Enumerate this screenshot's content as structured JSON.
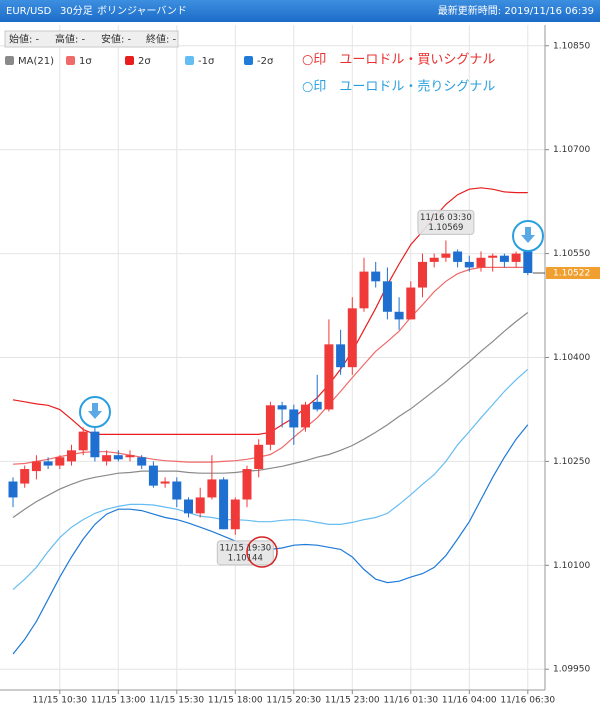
{
  "header": {
    "symbol": "EUR/USD",
    "timeframe": "30分足",
    "indicator": "ボリンジャーバンド",
    "updated": "最新更新時間: 2019/11/16 06:39"
  },
  "ohlc_box": [
    "始値: -",
    "高値: -",
    "安値: -",
    "終値: -"
  ],
  "chart_data": {
    "type": "candlestick",
    "categories": [
      null,
      null,
      null,
      null,
      "11/15 10:30",
      null,
      null,
      null,
      null,
      "11/15 13:00",
      null,
      null,
      null,
      null,
      "11/15 15:30",
      null,
      null,
      null,
      null,
      "11/15 18:00",
      null,
      null,
      null,
      null,
      "11/15 20:30",
      null,
      null,
      null,
      null,
      "11/15 23:00",
      null,
      null,
      null,
      null,
      "11/16 01:30",
      null,
      null,
      null,
      null,
      "11/16 04:00",
      null,
      null,
      null,
      null,
      "11/16 06:30"
    ],
    "open": [
      1.10221,
      1.10218,
      1.10236,
      1.1025,
      1.10244,
      1.1025,
      1.10266,
      1.10293,
      1.1025,
      1.10259,
      1.10256,
      1.10256,
      1.10244,
      1.10218,
      1.10221,
      1.10195,
      1.10175,
      1.10198,
      1.10224,
      1.10152,
      1.10195,
      1.10239,
      1.10274,
      1.10331,
      1.10325,
      1.10299,
      1.10336,
      1.10325,
      1.10419,
      1.10386,
      1.10471,
      1.10524,
      1.1051,
      1.10466,
      1.10455,
      1.10501,
      1.10538,
      1.10544,
      1.10553,
      1.10538,
      1.1053,
      1.10544,
      1.10547,
      1.10538,
      1.10553
    ],
    "high": [
      1.10227,
      1.10244,
      1.10259,
      1.10256,
      1.10259,
      1.10274,
      1.10299,
      1.10299,
      1.10266,
      1.10266,
      1.10266,
      1.10259,
      1.1025,
      1.10227,
      1.10227,
      1.10198,
      1.10212,
      1.10259,
      1.10227,
      1.10198,
      1.10244,
      1.10282,
      1.10336,
      1.10336,
      1.10332,
      1.10336,
      1.10375,
      1.10455,
      1.1044,
      1.10487,
      1.10544,
      1.10538,
      1.1053,
      1.10487,
      1.1051,
      1.1055,
      1.1055,
      1.10569,
      1.10556,
      1.10547,
      1.10553,
      1.1055,
      1.1055,
      1.10553,
      1.10556
    ],
    "low": [
      1.10184,
      1.10212,
      1.10224,
      1.10239,
      1.10239,
      1.10244,
      1.10259,
      1.1025,
      1.10244,
      1.1025,
      1.1025,
      1.10239,
      1.10212,
      1.10212,
      1.10184,
      1.10169,
      1.10169,
      1.10195,
      1.10152,
      1.10144,
      1.10184,
      1.10227,
      1.10266,
      1.10299,
      1.10274,
      1.10293,
      1.10322,
      1.10322,
      1.10375,
      1.10375,
      1.10466,
      1.10501,
      1.10455,
      1.1044,
      1.10455,
      1.10487,
      1.1053,
      1.10538,
      1.1053,
      1.10524,
      1.10524,
      1.10524,
      1.1053,
      1.1053,
      1.10519
    ],
    "close": [
      1.10198,
      1.10239,
      1.1025,
      1.10244,
      1.10256,
      1.10266,
      1.10293,
      1.10256,
      1.10259,
      1.10253,
      1.10259,
      1.10244,
      1.10215,
      1.10221,
      1.10195,
      1.10175,
      1.10198,
      1.10224,
      1.10152,
      1.10195,
      1.10239,
      1.10274,
      1.10331,
      1.10325,
      1.10299,
      1.10332,
      1.10325,
      1.10419,
      1.10386,
      1.10471,
      1.10524,
      1.1051,
      1.10466,
      1.10455,
      1.10501,
      1.10538,
      1.10544,
      1.1055,
      1.10538,
      1.1053,
      1.10544,
      1.10547,
      1.10538,
      1.1055,
      1.10522
    ],
    "up_color": "#f03a3a",
    "down_color": "#1f6fd0",
    "series": [
      {
        "name": "MA(21)",
        "color": "#8a8a8a",
        "values": [
          1.10169,
          1.10181,
          1.10192,
          1.10201,
          1.1021,
          1.10217,
          1.10223,
          1.10227,
          1.1023,
          1.10233,
          1.10234,
          1.10236,
          1.10236,
          1.10236,
          1.10236,
          1.10234,
          1.10233,
          1.10233,
          1.10233,
          1.10234,
          1.10236,
          1.10237,
          1.1024,
          1.10243,
          1.10247,
          1.10251,
          1.10256,
          1.1026,
          1.10266,
          1.10273,
          1.10282,
          1.10292,
          1.10303,
          1.10315,
          1.10326,
          1.10339,
          1.10352,
          1.10365,
          1.1038,
          1.10394,
          1.10409,
          1.10423,
          1.10438,
          1.10452,
          1.10465
        ]
      },
      {
        "name": "1σ",
        "color": "#f06a6a",
        "values": [
          1.10246,
          1.10247,
          1.1025,
          1.10253,
          1.10257,
          1.1026,
          1.10263,
          1.10264,
          1.10264,
          1.10262,
          1.10259,
          1.10256,
          1.10253,
          1.10251,
          1.1025,
          1.10249,
          1.10249,
          1.10249,
          1.1025,
          1.10251,
          1.10253,
          1.10256,
          1.1026,
          1.1027,
          1.10285,
          1.10299,
          1.10313,
          1.10332,
          1.10351,
          1.10371,
          1.1039,
          1.10409,
          1.10423,
          1.10438,
          1.10458,
          1.10476,
          1.10495,
          1.1051,
          1.10521,
          1.10527,
          1.1053,
          1.1053,
          1.1053,
          1.1053,
          1.1053
        ]
      },
      {
        "name": "2σ",
        "color": "#e81e1e",
        "values": [
          1.10339,
          1.10336,
          1.10333,
          1.10331,
          1.10325,
          1.10311,
          1.10296,
          1.10289,
          1.10289,
          1.10289,
          1.10289,
          1.10289,
          1.10289,
          1.10289,
          1.10289,
          1.10289,
          1.10289,
          1.10289,
          1.10289,
          1.10289,
          1.10289,
          1.10289,
          1.10292,
          1.10303,
          1.10313,
          1.10328,
          1.10342,
          1.10361,
          1.10383,
          1.10409,
          1.1044,
          1.10471,
          1.10505,
          1.10535,
          1.10563,
          1.10582,
          1.10602,
          1.10621,
          1.10635,
          1.10643,
          1.10645,
          1.10643,
          1.10639,
          1.10638,
          1.10638
        ]
      },
      {
        "name": "-1σ",
        "color": "#66bdf2",
        "values": [
          1.10065,
          1.1008,
          1.10097,
          1.1012,
          1.1014,
          1.10155,
          1.10166,
          1.10175,
          1.10181,
          1.10185,
          1.10188,
          1.10188,
          1.10187,
          1.10184,
          1.10181,
          1.10176,
          1.10171,
          1.10169,
          1.10166,
          1.10166,
          1.10165,
          1.10163,
          1.10163,
          1.10165,
          1.10166,
          1.10165,
          1.10162,
          1.10159,
          1.10159,
          1.10162,
          1.10166,
          1.10169,
          1.10175,
          1.10188,
          1.10202,
          1.10217,
          1.10231,
          1.1025,
          1.10274,
          1.10293,
          1.10313,
          1.10332,
          1.10351,
          1.10368,
          1.10383
        ]
      },
      {
        "name": "-2σ",
        "color": "#1f7ad8",
        "values": [
          1.09972,
          1.09993,
          1.10019,
          1.10051,
          1.10083,
          1.10112,
          1.10138,
          1.10159,
          1.10174,
          1.10181,
          1.10181,
          1.10179,
          1.10174,
          1.10169,
          1.10166,
          1.10161,
          1.10155,
          1.10149,
          1.10142,
          1.10135,
          1.10129,
          1.10126,
          1.10123,
          1.10125,
          1.10129,
          1.1013,
          1.10129,
          1.10126,
          1.10123,
          1.10112,
          1.10094,
          1.1008,
          1.10075,
          1.10077,
          1.10083,
          1.10088,
          1.10097,
          1.10114,
          1.10138,
          1.10163,
          1.10195,
          1.10227,
          1.10256,
          1.10282,
          1.10303
        ]
      }
    ],
    "ylim": [
      1.0992,
      1.1088
    ],
    "yticks": [
      {
        "value": 1.1085,
        "label": "1.10850"
      },
      {
        "value": 1.107,
        "label": "1.10700"
      },
      {
        "value": 1.1055,
        "label": "1.10550"
      },
      {
        "value": 1.104,
        "label": "1.10400"
      },
      {
        "value": 1.1025,
        "label": "1.10250"
      },
      {
        "value": 1.101,
        "label": "1.10100"
      },
      {
        "value": 1.0995,
        "label": "1.09950"
      }
    ],
    "grid": true,
    "annotations": [
      {
        "time": "11/16 03:30",
        "price": 1.10569
      },
      {
        "time": "11/15 19:30",
        "price": 1.10144
      }
    ],
    "signal_notes": [
      {
        "text": "○印　ユーロドル・買いシグナル",
        "color": "#e83030"
      },
      {
        "text": "○印　ユーロドル・売りシグナル",
        "color": "#2a9fe0"
      }
    ]
  }
}
